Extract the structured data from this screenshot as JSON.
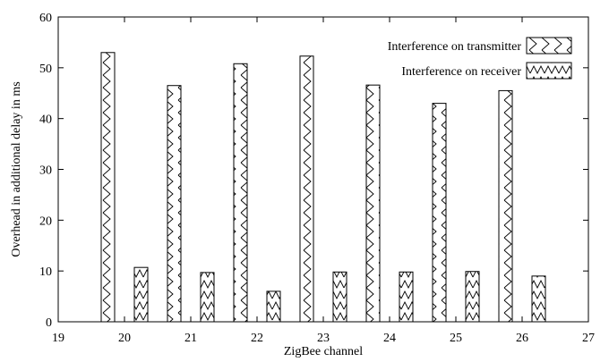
{
  "chart_data": {
    "type": "bar",
    "xlabel": "ZigBee channel",
    "ylabel": "Overhead in additional delay in ms",
    "xlim": [
      19,
      27
    ],
    "ylim": [
      0,
      60
    ],
    "x_ticks": [
      "19",
      "20",
      "21",
      "22",
      "23",
      "24",
      "25",
      "26",
      "27"
    ],
    "y_ticks": [
      "0",
      "10",
      "20",
      "30",
      "40",
      "50",
      "60"
    ],
    "grid": false,
    "legend_position": "top-right",
    "categories": [
      "20",
      "21",
      "22",
      "23",
      "24",
      "25",
      "26"
    ],
    "series": [
      {
        "name": "Interference on transmitter",
        "pattern": "chevron",
        "values": [
          53.0,
          46.5,
          50.8,
          52.3,
          46.6,
          43.0,
          45.5
        ]
      },
      {
        "name": "Interference on receiver",
        "pattern": "zigzag",
        "values": [
          10.7,
          9.7,
          6.0,
          9.8,
          9.8,
          9.9,
          9.0
        ]
      }
    ]
  }
}
